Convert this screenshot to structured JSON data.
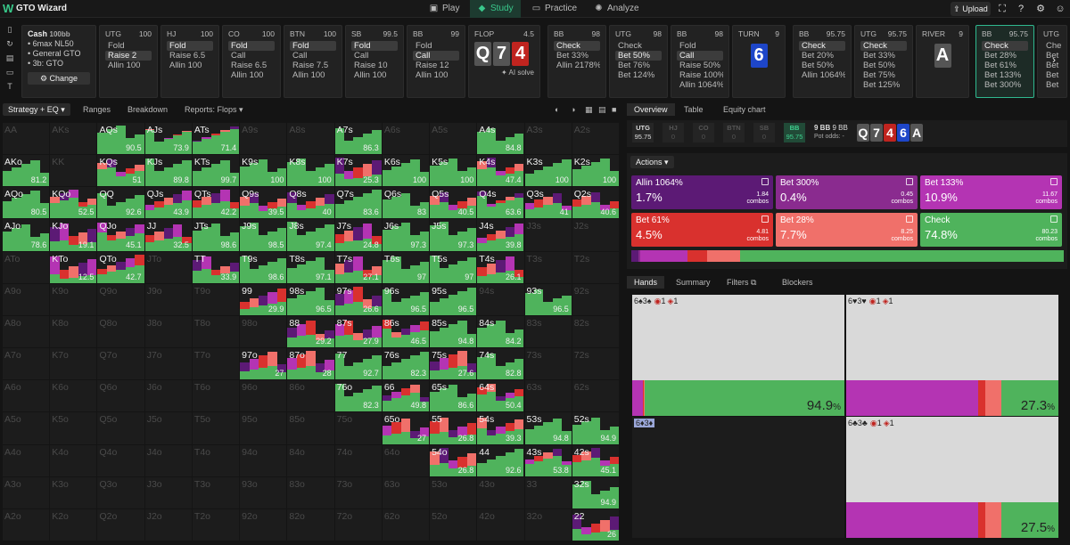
{
  "app": {
    "title": "GTO Wizard",
    "logo": "W",
    "upload": "Upload"
  },
  "nav": [
    {
      "label": "Play",
      "icon": "▣",
      "active": false
    },
    {
      "label": "Study",
      "icon": "◆",
      "active": true
    },
    {
      "label": "Practice",
      "icon": "▭",
      "active": false
    },
    {
      "label": "Analyze",
      "icon": "✺",
      "active": false
    }
  ],
  "top_icons": [
    "scan-icon",
    "help-icon",
    "settings-icon",
    "avatar-icon"
  ],
  "left_icons": [
    "bookmark-icon",
    "history-icon",
    "save-icon",
    "table-icon",
    "text-icon"
  ],
  "cash": {
    "title": "Cash",
    "stack": "100bb",
    "lines": [
      "6max NL50",
      "General GTO",
      "3b: GTO"
    ],
    "change": "Change"
  },
  "tree": [
    {
      "pos": "UTG",
      "stack": "100",
      "opts": [
        {
          "t": "Fold",
          "s": false
        },
        {
          "t": "Raise 2",
          "s": true
        },
        {
          "t": "Allin 100",
          "s": false
        }
      ]
    },
    {
      "pos": "HJ",
      "stack": "100",
      "opts": [
        {
          "t": "Fold",
          "s": true
        },
        {
          "t": "Raise 6.5",
          "s": false
        },
        {
          "t": "Allin 100",
          "s": false
        }
      ]
    },
    {
      "pos": "CO",
      "stack": "100",
      "opts": [
        {
          "t": "Fold",
          "s": true
        },
        {
          "t": "Call",
          "s": false
        },
        {
          "t": "Raise 6.5",
          "s": false
        },
        {
          "t": "Allin 100",
          "s": false
        }
      ]
    },
    {
      "pos": "BTN",
      "stack": "100",
      "opts": [
        {
          "t": "Fold",
          "s": true
        },
        {
          "t": "Call",
          "s": false
        },
        {
          "t": "Raise 7.5",
          "s": false
        },
        {
          "t": "Allin 100",
          "s": false
        }
      ]
    },
    {
      "pos": "SB",
      "stack": "99.5",
      "opts": [
        {
          "t": "Fold",
          "s": true
        },
        {
          "t": "Call",
          "s": false
        },
        {
          "t": "Raise 10",
          "s": false
        },
        {
          "t": "Allin 100",
          "s": false
        }
      ]
    },
    {
      "pos": "BB",
      "stack": "99",
      "opts": [
        {
          "t": "Fold",
          "s": false
        },
        {
          "t": "Call",
          "s": true
        },
        {
          "t": "Raise 12",
          "s": false
        },
        {
          "t": "Allin 100",
          "s": false
        }
      ]
    }
  ],
  "flop": {
    "label": "FLOP",
    "pot": "4.5",
    "cards": [
      {
        "r": "Q",
        "c": "#555"
      },
      {
        "r": "7",
        "c": "#555"
      },
      {
        "r": "4",
        "c": "#c0241f"
      }
    ],
    "ai": "AI solve"
  },
  "tree2": [
    {
      "pos": "BB",
      "stack": "98",
      "opts": [
        {
          "t": "Check",
          "s": true
        },
        {
          "t": "Bet 33%",
          "s": false
        },
        {
          "t": "Allin 2178%",
          "s": false
        }
      ]
    },
    {
      "pos": "UTG",
      "stack": "98",
      "opts": [
        {
          "t": "Check",
          "s": false
        },
        {
          "t": "Bet 50%",
          "s": true
        },
        {
          "t": "Bet 76%",
          "s": false
        },
        {
          "t": "Bet 124%",
          "s": false
        }
      ]
    },
    {
      "pos": "BB",
      "stack": "98",
      "opts": [
        {
          "t": "Fold",
          "s": false
        },
        {
          "t": "Call",
          "s": true
        },
        {
          "t": "Raise 50%",
          "s": false
        },
        {
          "t": "Raise 100%",
          "s": false
        },
        {
          "t": "Allin 1064%",
          "s": false
        }
      ]
    }
  ],
  "turn": {
    "label": "TURN",
    "pot": "9",
    "card": "6",
    "color": "#1e46c8"
  },
  "tree3": [
    {
      "pos": "BB",
      "stack": "95.75",
      "opts": [
        {
          "t": "Check",
          "s": true
        },
        {
          "t": "Bet 20%",
          "s": false
        },
        {
          "t": "Bet 50%",
          "s": false
        },
        {
          "t": "Allin 1064%",
          "s": false
        }
      ]
    },
    {
      "pos": "UTG",
      "stack": "95.75",
      "opts": [
        {
          "t": "Check",
          "s": true
        },
        {
          "t": "Bet 33%",
          "s": false
        },
        {
          "t": "Bet 50%",
          "s": false
        },
        {
          "t": "Bet 75%",
          "s": false
        },
        {
          "t": "Bet 125%",
          "s": false
        }
      ]
    }
  ],
  "river": {
    "label": "RIVER",
    "pot": "9",
    "card": "A",
    "color": "#555"
  },
  "active_card": {
    "pos": "BB",
    "stack": "95.75",
    "opts": [
      "Check",
      "Bet 28%",
      "Bet 61%",
      "Bet 133%",
      "Bet 300%"
    ]
  },
  "cut_card": {
    "pos": "UTG",
    "opts": [
      "Che",
      "Bet",
      "Bet",
      "Bet",
      "Bet"
    ]
  },
  "subtabs": [
    "Strategy + EQ",
    "Ranges",
    "Breakdown",
    "Reports: Flops"
  ],
  "ranks": [
    "A",
    "K",
    "Q",
    "J",
    "T",
    "9",
    "8",
    "7",
    "6",
    "5",
    "4",
    "3",
    "2"
  ],
  "grid_values": {
    "AQs": "90.5",
    "AJs": "73.9",
    "ATs": "71.4",
    "A7s": "86.3",
    "A4s": "84.8",
    "AKo": "81.2",
    "KQs": "51",
    "KJs": "89.8",
    "KTs": "99.7",
    "K9s": "100",
    "K8s": "100",
    "K7s": "25.3",
    "K6s": "100",
    "K5s": "100",
    "K4s": "47.4",
    "K3s": "100",
    "K2s": "100",
    "AQo": "80.5",
    "KQo": "52.5",
    "QQ": "92.6",
    "QJs": "43.9",
    "QTs": "42.2",
    "Q9s": "39.5",
    "Q8s": "40",
    "Q7s": "83.6",
    "Q6s": "83",
    "Q5s": "40.5",
    "Q4s": "63.6",
    "Q3s": "41",
    "Q2s": "40.6",
    "AJo": "78.6",
    "KJo": "19.1",
    "QJo": "45.1",
    "JJ": "32.5",
    "JTs": "98.6",
    "J9s": "98.5",
    "J8s": "97.4",
    "J7s": "24.8",
    "J6s": "97.3",
    "J5s": "97.3",
    "J4s": "39.8",
    "KTo": "12.5",
    "QTo": "42.7",
    "TT": "33.9",
    "T9s": "98.6",
    "T8s": "97.1",
    "T7s": "27.1",
    "T6s": "97",
    "T5s": "97",
    "T4s": "26.1",
    "99": "29.9",
    "98s": "96.5",
    "97s": "26.6",
    "96s": "96.5",
    "95s": "96.5",
    "93s": "96.5",
    "88": "29.2",
    "87s": "27.9",
    "86s": "46.5",
    "85s": "94.8",
    "84s": "84.2",
    "97o": "27",
    "87o": "28",
    "77": "92.7",
    "76s": "82.3",
    "75s": "27.6",
    "74s": "82.8",
    "76o": "82.3",
    "66": "49.8",
    "65s": "86.6",
    "64s": "50.4",
    "65o": "27",
    "55": "26.8",
    "54s": "39.3",
    "53s": "94.8",
    "54o": "26.8",
    "44": "92.6",
    "43s": "53.8",
    "42s": "45.1",
    "52s": "94.9",
    "32s": "94.9",
    "22": "26"
  },
  "right_tabs": [
    "Overview",
    "Table",
    "Equity chart"
  ],
  "positions": [
    {
      "p": "UTG",
      "s": "95.75",
      "st": "on"
    },
    {
      "p": "HJ",
      "s": "0",
      "st": "off"
    },
    {
      "p": "CO",
      "s": "0",
      "st": "off"
    },
    {
      "p": "BTN",
      "s": "0",
      "st": "off"
    },
    {
      "p": "SB",
      "s": "0",
      "st": "off"
    },
    {
      "p": "BB",
      "s": "95.75",
      "st": "bb"
    }
  ],
  "pot": {
    "a": "9 BB",
    "b": "9 BB",
    "odds": "Pot odds: -"
  },
  "board_mini": [
    {
      "r": "Q",
      "c": "#555"
    },
    {
      "r": "7",
      "c": "#555"
    },
    {
      "r": "4",
      "c": "#c0241f"
    },
    {
      "r": "6",
      "c": "#1e46c8"
    },
    {
      "r": "A",
      "c": "#555"
    }
  ],
  "actions_label": "Actions",
  "actions": [
    {
      "name": "Allin 1064%",
      "pct": "1.7%",
      "combos": "1.84",
      "color": "#5c1a75"
    },
    {
      "name": "Bet 300%",
      "pct": "0.4%",
      "combos": "0.45",
      "color": "#8a2b8f"
    },
    {
      "name": "Bet 133%",
      "pct": "10.9%",
      "combos": "11.67",
      "color": "#b434b3"
    },
    {
      "name": "Bet 61%",
      "pct": "4.5%",
      "combos": "4.81",
      "color": "#d9312e"
    },
    {
      "name": "Bet 28%",
      "pct": "7.7%",
      "combos": "8.25",
      "color": "#f0706a"
    },
    {
      "name": "Check",
      "pct": "74.8%",
      "combos": "80.23",
      "color": "#4fb35c"
    }
  ],
  "combos_label": "combos",
  "hands_tabs": [
    "Hands",
    "Summary",
    "Filters",
    "Blockers"
  ],
  "combos": [
    {
      "h": "6♠3♠",
      "b": "1",
      "c": "1",
      "val": "94.9",
      "g": 0.94,
      "dark": false
    },
    {
      "h": "6♥3♥",
      "b": "1",
      "c": "1",
      "val": "27.3",
      "g": 0.27,
      "dark": false
    },
    {
      "h": "6♦3♦",
      "b": "",
      "c": "",
      "val": "",
      "g": 0,
      "dark": true
    },
    {
      "h": "6♣3♣",
      "b": "1",
      "c": "1",
      "val": "27.5",
      "g": 0.27,
      "dark": false
    }
  ]
}
